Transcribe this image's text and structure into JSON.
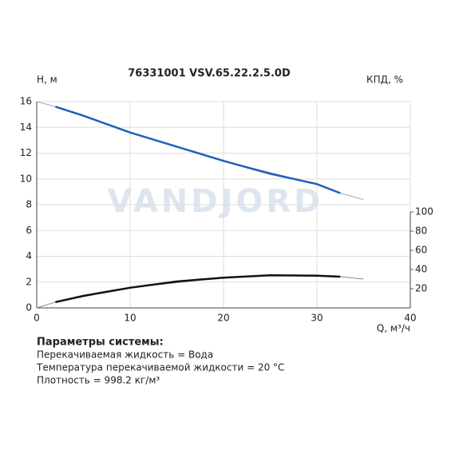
{
  "chart_data": {
    "type": "line",
    "title": "76331001 VSV.65.22.2.5.0D",
    "ylabel": "H, м",
    "y2label": "КПД, %",
    "xlabel": "Q, м³/ч",
    "watermark": "VANDJORD",
    "xlim": [
      0,
      40
    ],
    "xticks": [
      0,
      10,
      20,
      30,
      40
    ],
    "ylim": [
      0,
      16
    ],
    "yticks": [
      0,
      2,
      4,
      6,
      8,
      10,
      12,
      14,
      16
    ],
    "y2lim": [
      0,
      215
    ],
    "y2ticks": [
      20,
      40,
      60,
      80,
      100
    ],
    "grid": true,
    "series": [
      {
        "color": "#8fa6c8",
        "line_width": 1,
        "x": [
          0,
          2,
          10,
          20,
          30,
          32.5,
          35
        ],
        "values": [
          16,
          15.6,
          13.6,
          11.4,
          9.6,
          8.9,
          8.4
        ]
      },
      {
        "color": "#1f5fbf",
        "line_width": 2.5,
        "x": [
          2,
          5,
          10,
          15,
          20,
          25,
          30,
          32.5
        ],
        "values": [
          15.6,
          14.9,
          13.6,
          12.5,
          11.4,
          10.4,
          9.6,
          8.9
        ]
      },
      {
        "color": "#888888",
        "line_width": 1,
        "axis": "y2",
        "x": [
          0,
          2,
          10,
          20,
          25,
          30,
          32.5,
          35
        ],
        "values": [
          0,
          6,
          21,
          31.5,
          34,
          33.5,
          32.5,
          30
        ]
      },
      {
        "color": "#111111",
        "line_width": 2.5,
        "axis": "y2",
        "x": [
          2,
          5,
          10,
          15,
          20,
          25,
          30,
          32.5
        ],
        "values": [
          6,
          12.5,
          21,
          27.5,
          31.5,
          34,
          33.5,
          32.5
        ]
      }
    ]
  },
  "parameters": {
    "heading": "Параметры системы:",
    "lines": [
      "Перекачиваемая жидкость = Вода",
      "Температура перекачиваемой жидкости = 20 °C",
      "Плотность = 998.2 кг/м³"
    ]
  }
}
